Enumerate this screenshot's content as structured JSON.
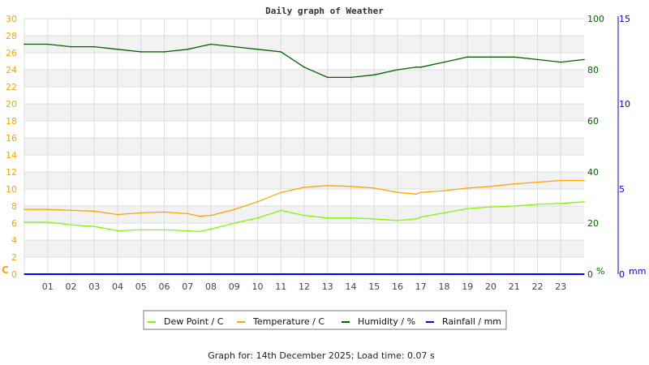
{
  "chart_data": {
    "type": "line",
    "title": "Daily graph of Weather",
    "footer": "Graph for: 14th December 2025; Load time: 0.07 s",
    "x_ticks": [
      "01",
      "02",
      "03",
      "04",
      "05",
      "06",
      "07",
      "08",
      "09",
      "10",
      "11",
      "12",
      "13",
      "14",
      "15",
      "16",
      "17",
      "18",
      "19",
      "20",
      "21",
      "22",
      "23"
    ],
    "xlim": [
      0,
      24
    ],
    "axes": {
      "left": {
        "label": "C",
        "ylim": [
          0,
          30
        ],
        "ticks": [
          "0",
          "2",
          "4",
          "6",
          "8",
          "10",
          "12",
          "14",
          "16",
          "18",
          "20",
          "22",
          "24",
          "26",
          "28",
          "30"
        ],
        "color": "#ffa500"
      },
      "right1": {
        "label": "%",
        "ylim": [
          0,
          100
        ],
        "ticks": [
          "0",
          "20",
          "40",
          "60",
          "80",
          "100"
        ],
        "color": "#006400"
      },
      "right2": {
        "label": "mm",
        "ylim": [
          0,
          15
        ],
        "ticks": [
          "0",
          "5",
          "10",
          "15"
        ],
        "color": "#0000ff"
      }
    },
    "grid": true,
    "legend_position": "bottom",
    "x": [
      0,
      1,
      2,
      3,
      4,
      5,
      6,
      7,
      7.5,
      8,
      9,
      10,
      11,
      12,
      13,
      14,
      15,
      16,
      16.8,
      17,
      18,
      19,
      20,
      21,
      22,
      23,
      24
    ],
    "series": [
      {
        "name": "Dew Point / C",
        "color": "#7cfc00",
        "axis": "left",
        "values": [
          6.1,
          6.1,
          5.8,
          5.6,
          5.1,
          5.2,
          5.2,
          5.1,
          5.0,
          5.3,
          6.0,
          6.6,
          7.5,
          6.9,
          6.6,
          6.6,
          6.5,
          6.3,
          6.5,
          6.7,
          7.2,
          7.7,
          7.9,
          8.0,
          8.2,
          8.3,
          8.5
        ]
      },
      {
        "name": "Temperature / C",
        "color": "#ffa500",
        "axis": "left",
        "values": [
          7.6,
          7.6,
          7.5,
          7.4,
          7.0,
          7.2,
          7.3,
          7.1,
          6.8,
          6.9,
          7.6,
          8.5,
          9.6,
          10.2,
          10.4,
          10.3,
          10.1,
          9.6,
          9.4,
          9.6,
          9.8,
          10.1,
          10.3,
          10.6,
          10.8,
          11.0,
          11.0
        ]
      },
      {
        "name": "Humidity / %",
        "color": "#006400",
        "axis": "right1",
        "values": [
          90,
          90,
          89,
          89,
          88,
          87,
          87,
          88,
          89,
          90,
          89,
          88,
          87,
          81,
          77,
          77,
          78,
          80,
          81,
          81,
          83,
          85,
          85,
          85,
          84,
          83,
          84
        ]
      },
      {
        "name": "Rainfall / mm",
        "color": "#0000ff",
        "axis": "right2",
        "values": [
          0,
          0,
          0,
          0,
          0,
          0,
          0,
          0,
          0,
          0,
          0,
          0,
          0,
          0,
          0,
          0,
          0,
          0,
          0,
          0,
          0,
          0,
          0,
          0,
          0,
          0,
          0
        ]
      }
    ]
  }
}
